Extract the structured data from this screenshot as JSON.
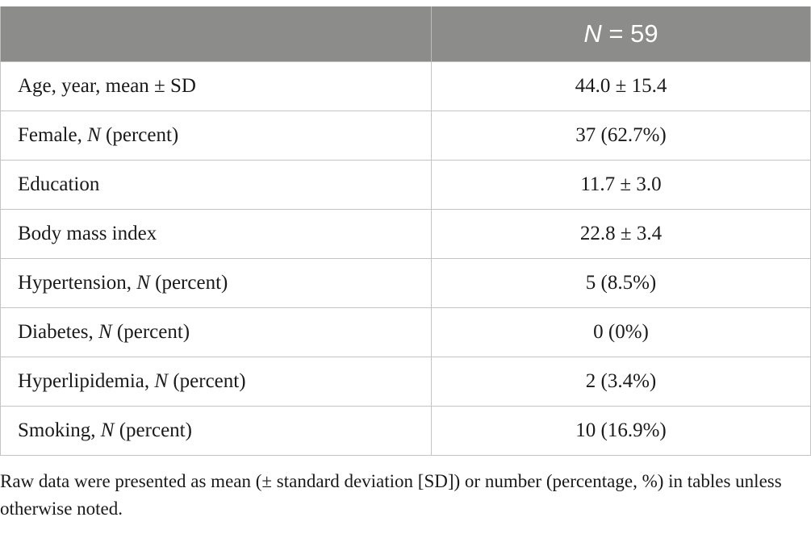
{
  "table": {
    "header": {
      "col1": "",
      "col2_n_symbol": "N",
      "col2_rest": " = 59"
    },
    "rows": [
      {
        "pre": "Age, year, mean ± SD",
        "ital": "",
        "post": "",
        "value": "44.0 ± 15.4"
      },
      {
        "pre": "Female, ",
        "ital": "N",
        "post": " (percent)",
        "value": "37 (62.7%)"
      },
      {
        "pre": "Education",
        "ital": "",
        "post": "",
        "value": "11.7 ± 3.0"
      },
      {
        "pre": "Body mass index",
        "ital": "",
        "post": "",
        "value": "22.8 ± 3.4"
      },
      {
        "pre": "Hypertension, ",
        "ital": "N",
        "post": " (percent)",
        "value": "5 (8.5%)"
      },
      {
        "pre": "Diabetes, ",
        "ital": "N",
        "post": " (percent)",
        "value": "0 (0%)"
      },
      {
        "pre": "Hyperlipidemia, ",
        "ital": "N",
        "post": " (percent)",
        "value": "2 (3.4%)"
      },
      {
        "pre": "Smoking, ",
        "ital": "N",
        "post": " (percent)",
        "value": "10 (16.9%)"
      }
    ]
  },
  "footnote": "Raw data were presented as mean (± standard deviation [SD]) or number (percentage, %) in tables unless otherwise noted."
}
